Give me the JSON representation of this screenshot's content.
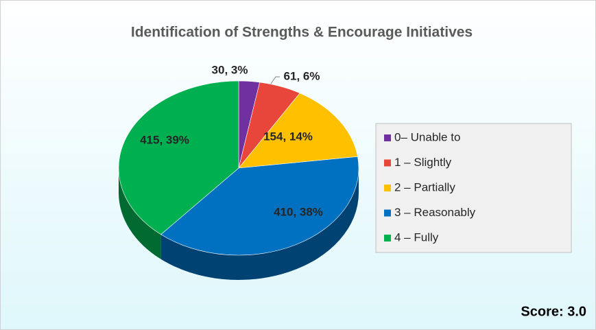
{
  "chart_data": {
    "type": "pie",
    "title": "Identification of Strengths & Encourage Initiatives",
    "categories": [
      "0– Unable to",
      "1 – Slightly",
      "2 – Partially",
      "3 – Reasonably",
      "4 – Fully"
    ],
    "values": [
      30,
      61,
      154,
      410,
      415
    ],
    "value_labels": [
      "30, 3%",
      "61, 6%",
      "154, 14%",
      "410, 38%",
      "415, 39%"
    ],
    "colors": [
      "#7030a0",
      "#e8463a",
      "#ffc000",
      "#0070c0",
      "#00b050"
    ],
    "legend": "right",
    "annotation": "Score: 3.0"
  }
}
